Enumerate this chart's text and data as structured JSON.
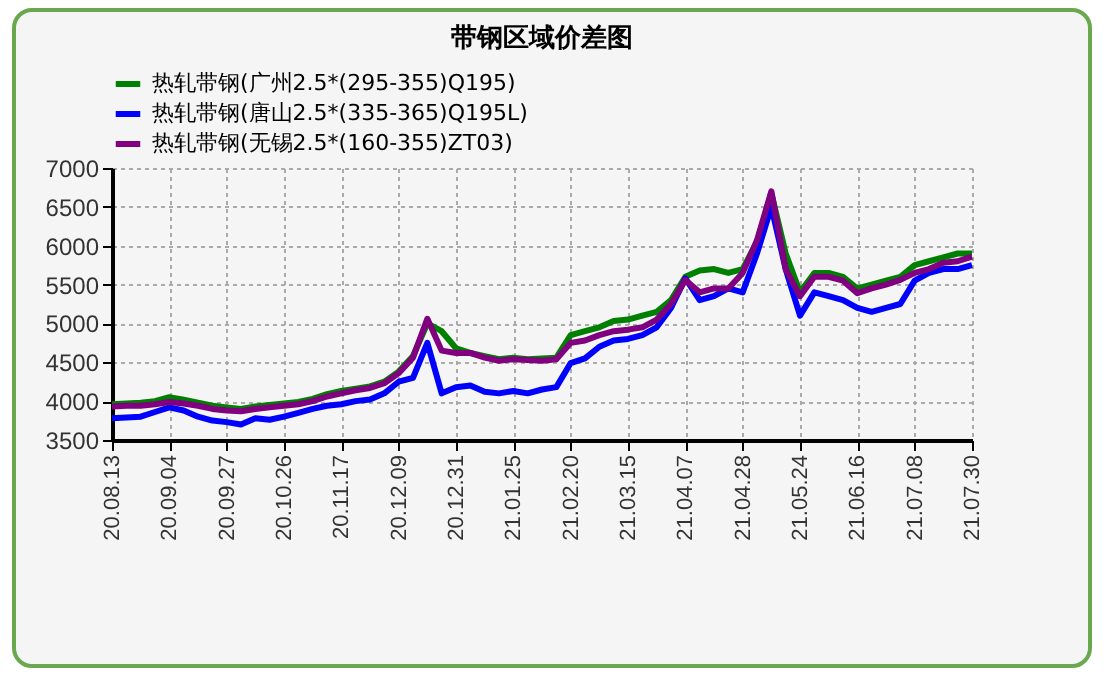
{
  "chart_data": {
    "type": "line",
    "title": "带钢区域价差图",
    "categories": [
      "20.08.13",
      null,
      null,
      null,
      "20.09.04",
      null,
      null,
      null,
      "20.09.27",
      null,
      null,
      null,
      "20.10.26",
      null,
      null,
      null,
      "20.11.17",
      null,
      null,
      null,
      "20.12.09",
      null,
      null,
      null,
      "20.12.31",
      null,
      null,
      null,
      "21.01.25",
      null,
      null,
      null,
      "21.02.20",
      null,
      null,
      null,
      "21.03.15",
      null,
      null,
      null,
      "21.04.07",
      null,
      null,
      null,
      "21.04.28",
      null,
      null,
      null,
      "21.05.24",
      null,
      null,
      null,
      "21.06.16",
      null,
      null,
      null,
      "21.07.08",
      null,
      null,
      null,
      "21.07.30"
    ],
    "series": [
      {
        "name": "热轧带钢(广州2.5*(295-355)Q195)",
        "color": "#008000",
        "values": [
          3960,
          3970,
          3980,
          4000,
          4050,
          4020,
          3980,
          3940,
          3920,
          3900,
          3930,
          3950,
          3970,
          3990,
          4030,
          4090,
          4130,
          4160,
          4190,
          4250,
          4380,
          4580,
          5000,
          4900,
          4680,
          4620,
          4580,
          4540,
          4560,
          4540,
          4550,
          4560,
          4850,
          4900,
          4950,
          5030,
          5050,
          5100,
          5150,
          5300,
          5600,
          5680,
          5700,
          5650,
          5700,
          6050,
          6680,
          5900,
          5400,
          5650,
          5650,
          5600,
          5450,
          5500,
          5550,
          5600,
          5750,
          5800,
          5850,
          5900,
          5900
        ]
      },
      {
        "name": "热轧带钢(唐山2.5*(335-365)Q195L)",
        "color": "#0000ff",
        "values": [
          3780,
          3790,
          3800,
          3860,
          3920,
          3880,
          3800,
          3750,
          3730,
          3700,
          3780,
          3760,
          3800,
          3850,
          3900,
          3940,
          3960,
          4000,
          4020,
          4100,
          4250,
          4300,
          4750,
          4100,
          4180,
          4200,
          4120,
          4100,
          4130,
          4100,
          4150,
          4180,
          4490,
          4550,
          4700,
          4780,
          4800,
          4850,
          4950,
          5200,
          5580,
          5300,
          5350,
          5450,
          5400,
          5900,
          6500,
          5700,
          5100,
          5400,
          5350,
          5300,
          5200,
          5150,
          5200,
          5250,
          5550,
          5650,
          5700,
          5700,
          5750
        ]
      },
      {
        "name": "热轧带钢(无锡2.5*(160-355)ZT03)",
        "color": "#800080",
        "values": [
          3930,
          3940,
          3940,
          3960,
          3990,
          3970,
          3940,
          3900,
          3880,
          3870,
          3900,
          3920,
          3940,
          3960,
          4000,
          4060,
          4100,
          4140,
          4170,
          4230,
          4360,
          4560,
          5060,
          4650,
          4620,
          4620,
          4560,
          4520,
          4540,
          4530,
          4520,
          4540,
          4750,
          4780,
          4850,
          4900,
          4920,
          4950,
          5050,
          5250,
          5560,
          5400,
          5450,
          5450,
          5650,
          6070,
          6700,
          5700,
          5350,
          5600,
          5600,
          5550,
          5390,
          5450,
          5500,
          5560,
          5650,
          5700,
          5780,
          5800,
          5860
        ]
      }
    ],
    "ylim": [
      3500,
      7000
    ],
    "yticks": [
      3500,
      4000,
      4500,
      5000,
      5500,
      6000,
      6500,
      7000
    ],
    "grid": true,
    "legend": "top",
    "line_style": "solid"
  }
}
